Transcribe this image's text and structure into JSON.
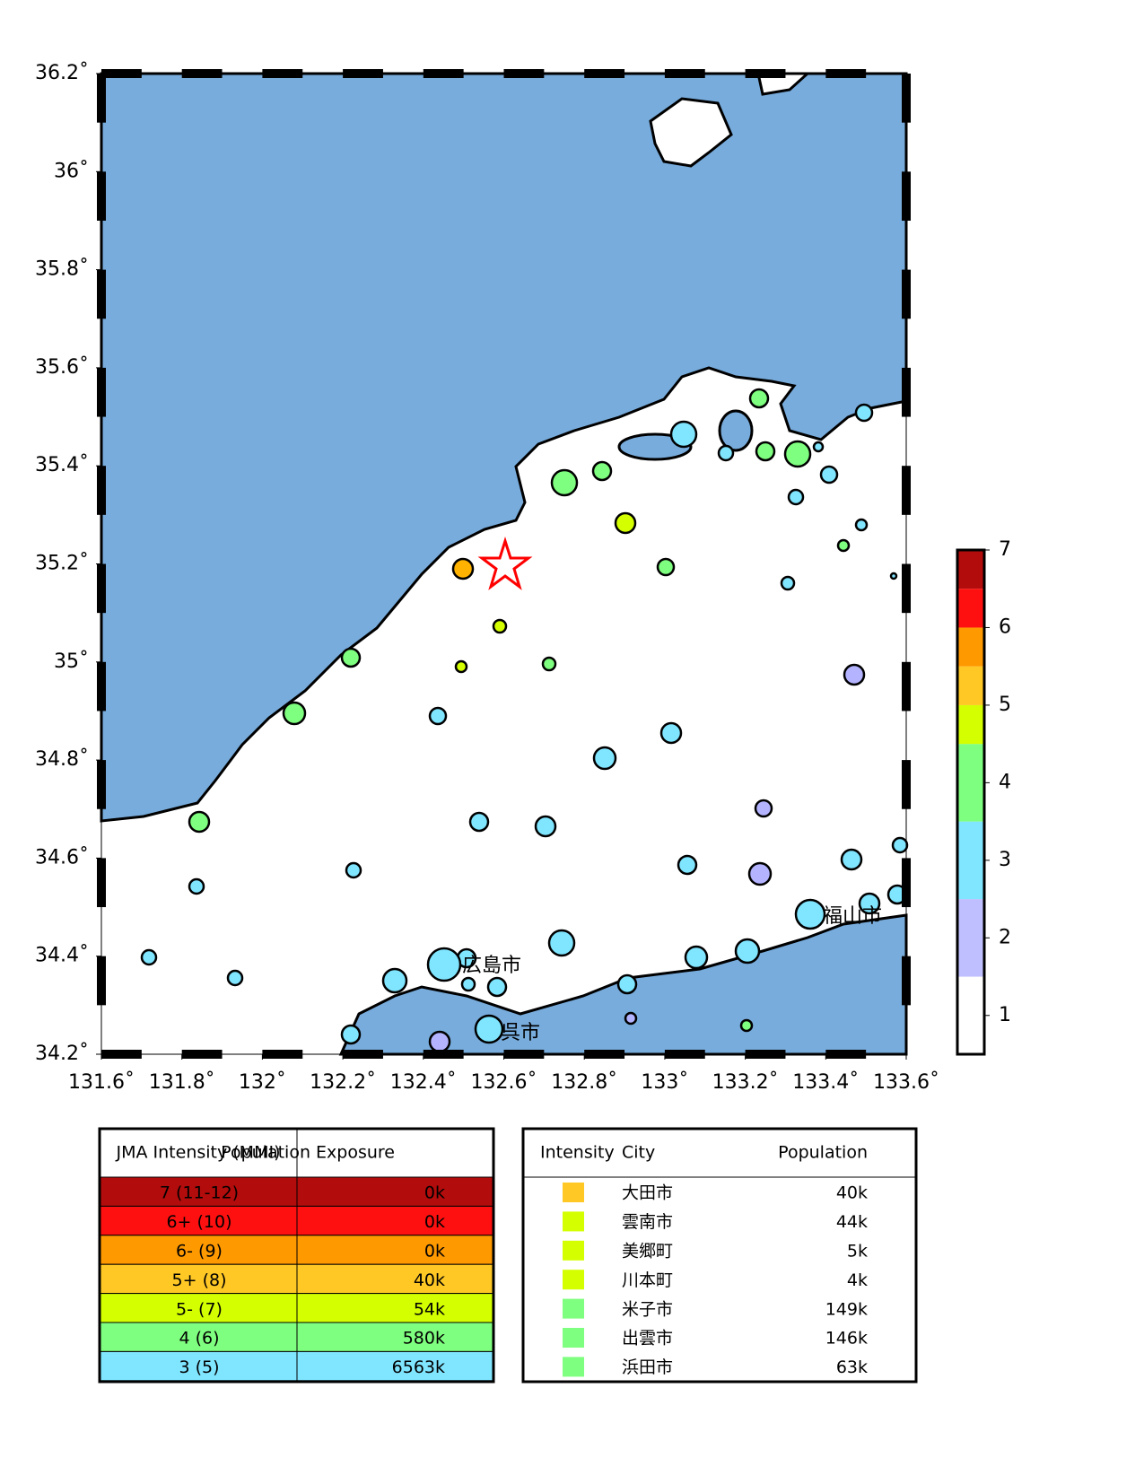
{
  "map": {
    "xlim": [
      131.6,
      133.6
    ],
    "ylim": [
      34.2,
      36.2
    ],
    "xticks": [
      {
        "value": 131.6,
        "label": "131.6˚"
      },
      {
        "value": 131.8,
        "label": "131.8˚"
      },
      {
        "value": 132,
        "label": "132˚"
      },
      {
        "value": 132.2,
        "label": "132.2˚"
      },
      {
        "value": 132.4,
        "label": "132.4˚"
      },
      {
        "value": 132.6,
        "label": "132.6˚"
      },
      {
        "value": 132.8,
        "label": "132.8˚"
      },
      {
        "value": 133,
        "label": "133˚"
      },
      {
        "value": 133.2,
        "label": "133.2˚"
      },
      {
        "value": 133.4,
        "label": "133.4˚"
      },
      {
        "value": 133.6,
        "label": "133.6˚"
      }
    ],
    "yticks": [
      {
        "value": 34.2,
        "label": "34.2˚"
      },
      {
        "value": 34.4,
        "label": "34.4˚"
      },
      {
        "value": 34.6,
        "label": "34.6˚"
      },
      {
        "value": 34.8,
        "label": "34.8˚"
      },
      {
        "value": 35,
        "label": "35˚"
      },
      {
        "value": 35.2,
        "label": "35.2˚"
      },
      {
        "value": 35.4,
        "label": "35.4˚"
      },
      {
        "value": 35.6,
        "label": "35.6˚"
      },
      {
        "value": 35.8,
        "label": "35.8˚"
      },
      {
        "value": 36,
        "label": "36˚"
      },
      {
        "value": 36.2,
        "label": "36.2˚"
      }
    ],
    "cities": [
      "広島市",
      "呉市",
      "福山市"
    ]
  },
  "colorbar": {
    "range": [
      0.5,
      7
    ],
    "ticks": [
      1,
      2,
      3,
      4,
      5,
      6,
      7
    ],
    "segments": [
      {
        "from": 0.5,
        "to": 1.5,
        "color": "#ffffff"
      },
      {
        "from": 1.5,
        "to": 2.5,
        "color": "#bfbfff"
      },
      {
        "from": 2.5,
        "to": 3.5,
        "color": "#80e5ff"
      },
      {
        "from": 3.5,
        "to": 4.5,
        "color": "#7fff7f"
      },
      {
        "from": 4.5,
        "to": 5,
        "color": "#d4ff00"
      },
      {
        "from": 5,
        "to": 5.5,
        "color": "#ffc825"
      },
      {
        "from": 5.5,
        "to": 6,
        "color": "#ff9900"
      },
      {
        "from": 6,
        "to": 6.5,
        "color": "#ff1010"
      },
      {
        "from": 6.5,
        "to": 7,
        "color": "#b30c0c"
      }
    ]
  },
  "exposure_table": {
    "headers": [
      "JMA Intensity (MMI)",
      "Population Exposure"
    ],
    "rows": [
      [
        "7 (11-12)",
        "0k"
      ],
      [
        "6+ (10)",
        "0k"
      ],
      [
        "6- (9)",
        "0k"
      ],
      [
        "5+ (8)",
        "40k"
      ],
      [
        "5- (7)",
        "54k"
      ],
      [
        "4 (6)",
        "580k"
      ],
      [
        "3 (5)",
        "6563k"
      ]
    ],
    "colors": [
      "#b30c0c",
      "#ff1010",
      "#ff9900",
      "#ffc825",
      "#d4ff00",
      "#7fff7f",
      "#80e5ff"
    ]
  },
  "city_table": {
    "headers": [
      "Intensity",
      "City",
      "Population"
    ],
    "rows": [
      [
        "大田市",
        "40k"
      ],
      [
        "雲南市",
        "44k"
      ],
      [
        "美郷町",
        "5k"
      ],
      [
        "川本町",
        "4k"
      ],
      [
        "米子市",
        "149k"
      ],
      [
        "出雲市",
        "146k"
      ],
      [
        "浜田市",
        "63k"
      ]
    ],
    "colors": [
      "#ffc825",
      "#d4ff00",
      "#d4ff00",
      "#d4ff00",
      "#7fff7f",
      "#7fff7f",
      "#7fff7f"
    ]
  }
}
